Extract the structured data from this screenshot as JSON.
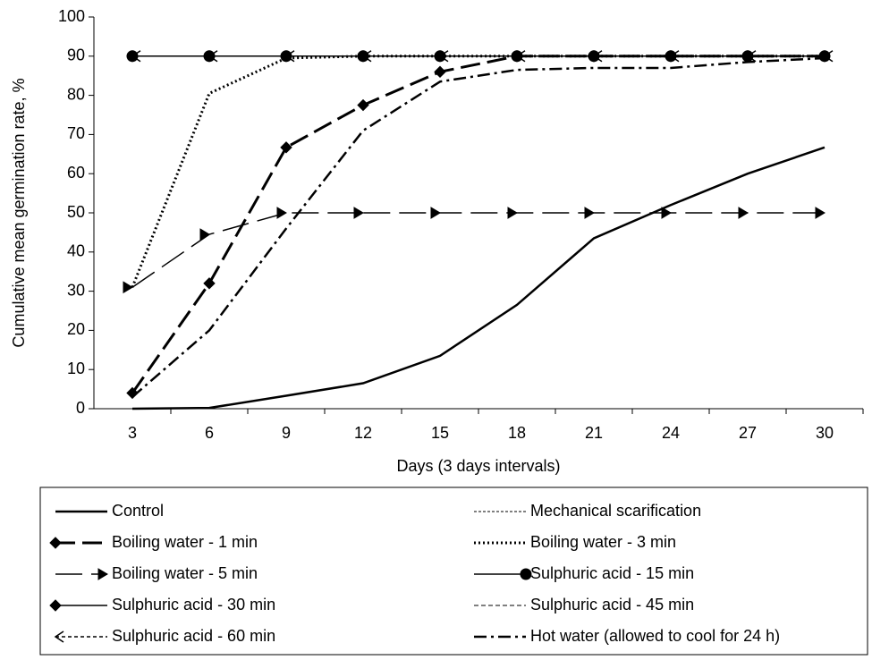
{
  "chart_data": {
    "type": "line",
    "y_label": "Cumulative mean germination rate, %",
    "x_label": "Days (3 days intervals)",
    "categories": [
      3,
      6,
      9,
      12,
      15,
      18,
      21,
      24,
      27,
      30
    ],
    "ylim": [
      0,
      100
    ],
    "yticks": [
      0,
      10,
      20,
      30,
      40,
      50,
      60,
      70,
      80,
      90,
      100
    ],
    "series": [
      {
        "name": "Control",
        "color": "#000000",
        "width": 2.5,
        "dash": "none",
        "marker": "none",
        "values": [
          0,
          0.2,
          3.3,
          6.5,
          13.5,
          26.5,
          43.5,
          52,
          60,
          66.7
        ]
      },
      {
        "name": "Mechanical scarification",
        "color": "#000000",
        "width": 1,
        "dash": "3,2",
        "marker": "none",
        "values": [
          90,
          90,
          90,
          90,
          90,
          90,
          90,
          90,
          90,
          90
        ]
      },
      {
        "name": "Boiling water - 1 min",
        "color": "#000000",
        "width": 3,
        "dash": "22,8",
        "marker": "diamond",
        "values": [
          4,
          32,
          66.7,
          77.5,
          86,
          90,
          90,
          90,
          90,
          90
        ]
      },
      {
        "name": "Boiling water - 3 min",
        "color": "#000000",
        "width": 3,
        "dash": "2,3",
        "marker": "none",
        "values": [
          31,
          80.5,
          89.5,
          90,
          90,
          90,
          90,
          90,
          90,
          90
        ]
      },
      {
        "name": "Boiling water - 5 min",
        "color": "#000000",
        "width": 1.5,
        "dash": "30,10",
        "marker": "arrow-right",
        "values": [
          31,
          44.5,
          50,
          50,
          50,
          50,
          50,
          50,
          50,
          50
        ]
      },
      {
        "name": "Sulphuric acid - 15 min",
        "color": "#000000",
        "width": 1.5,
        "dash": "none",
        "marker": "circle",
        "values": [
          90,
          90,
          90,
          90,
          90,
          90,
          90,
          90,
          90,
          90
        ]
      },
      {
        "name": "Sulphuric acid - 30 min",
        "color": "#000000",
        "width": 1.5,
        "dash": "none",
        "marker": "diamond",
        "values": [
          90,
          90,
          90,
          90,
          90,
          90,
          90,
          90,
          90,
          90
        ]
      },
      {
        "name": "Sulphuric acid - 45 min",
        "color": "#000000",
        "width": 1,
        "dash": "5,3",
        "marker": "none",
        "values": [
          90,
          90,
          90,
          90,
          90,
          90,
          90,
          90,
          90,
          90
        ]
      },
      {
        "name": "Sulphuric acid - 60 min",
        "color": "#000000",
        "width": 1.5,
        "dash": "4,3",
        "marker": "arrow-left",
        "values": [
          90,
          90,
          90,
          90,
          90,
          90,
          90,
          90,
          90,
          90
        ]
      },
      {
        "name": "Hot water (allowed to cool for 24 h)",
        "color": "#000000",
        "width": 2.5,
        "dash": "14,5,3,5",
        "marker": "none",
        "values": [
          3,
          20,
          46,
          71,
          83.5,
          86.5,
          87,
          87,
          88.5,
          89.5
        ]
      }
    ]
  }
}
